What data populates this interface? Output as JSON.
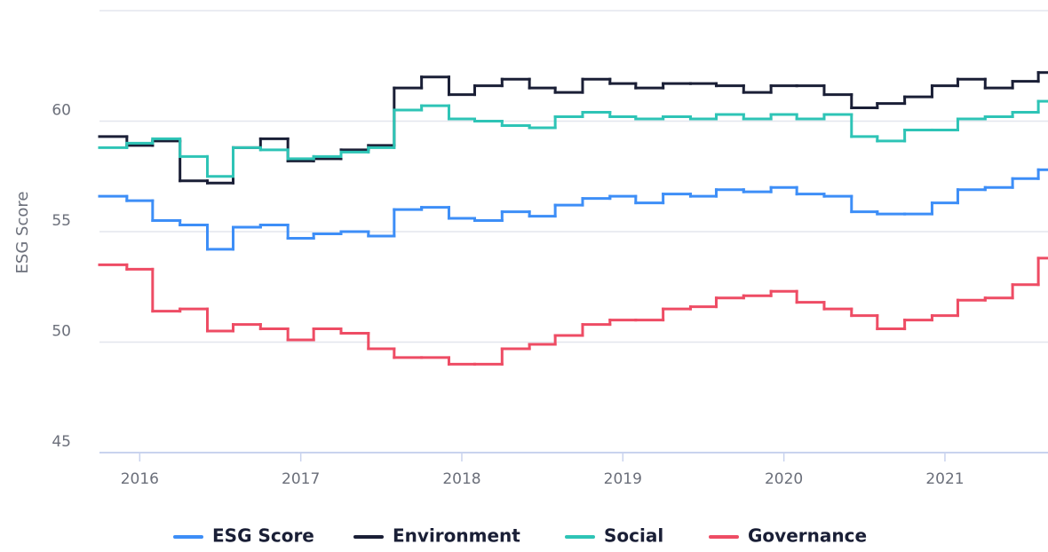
{
  "chart_data": {
    "type": "line",
    "step": "post",
    "y_label": "ESG Score",
    "x": [
      2015.75,
      2015.92,
      2016.08,
      2016.25,
      2016.42,
      2016.58,
      2016.75,
      2016.92,
      2017.08,
      2017.25,
      2017.42,
      2017.58,
      2017.75,
      2017.92,
      2018.08,
      2018.25,
      2018.42,
      2018.58,
      2018.75,
      2018.92,
      2019.08,
      2019.25,
      2019.42,
      2019.58,
      2019.75,
      2019.92,
      2020.08,
      2020.25,
      2020.42,
      2020.58,
      2020.75,
      2020.92,
      2021.08,
      2021.25,
      2021.42,
      2021.58
    ],
    "series": [
      {
        "name": "ESG Score",
        "color": "#3d8ef7",
        "values": [
          56.6,
          56.4,
          55.5,
          55.3,
          54.2,
          55.2,
          55.3,
          54.7,
          54.9,
          55.0,
          54.8,
          56.0,
          56.1,
          55.6,
          55.5,
          55.9,
          55.7,
          56.2,
          56.5,
          56.6,
          56.3,
          56.7,
          56.6,
          56.9,
          56.8,
          57.0,
          56.7,
          56.6,
          55.9,
          55.8,
          55.8,
          56.3,
          56.9,
          57.0,
          57.4,
          57.8
        ]
      },
      {
        "name": "Environment",
        "color": "#1a1f36",
        "values": [
          59.3,
          58.9,
          59.1,
          57.3,
          57.2,
          58.8,
          59.2,
          58.2,
          58.3,
          58.7,
          58.9,
          61.5,
          62.0,
          61.2,
          61.6,
          61.9,
          61.5,
          61.3,
          61.9,
          61.7,
          61.5,
          61.7,
          61.7,
          61.6,
          61.3,
          61.6,
          61.6,
          61.2,
          60.6,
          60.8,
          61.1,
          61.6,
          61.9,
          61.5,
          61.8,
          62.2
        ]
      },
      {
        "name": "Social",
        "color": "#2ec4b6",
        "values": [
          58.8,
          59.0,
          59.2,
          58.4,
          57.5,
          58.8,
          58.7,
          58.3,
          58.4,
          58.6,
          58.8,
          60.5,
          60.7,
          60.1,
          60.0,
          59.8,
          59.7,
          60.2,
          60.4,
          60.2,
          60.1,
          60.2,
          60.1,
          60.3,
          60.1,
          60.3,
          60.1,
          60.3,
          59.3,
          59.1,
          59.6,
          59.6,
          60.1,
          60.2,
          60.4,
          60.9
        ]
      },
      {
        "name": "Governance",
        "color": "#ee4c64",
        "values": [
          53.5,
          53.3,
          51.4,
          51.5,
          50.5,
          50.8,
          50.6,
          50.1,
          50.6,
          50.4,
          49.7,
          49.3,
          49.3,
          49.0,
          49.0,
          49.7,
          49.9,
          50.3,
          50.8,
          51.0,
          51.0,
          51.5,
          51.6,
          52.0,
          52.1,
          52.3,
          51.8,
          51.5,
          51.2,
          50.6,
          51.0,
          51.2,
          51.9,
          52.0,
          52.6,
          53.8
        ]
      }
    ],
    "xlim": [
      2015.75,
      2021.64
    ],
    "xticks": [
      2016,
      2017,
      2018,
      2019,
      2020,
      2021
    ],
    "ylim": [
      45,
      65
    ],
    "yticks": [
      45,
      50,
      55,
      60
    ],
    "grid": true,
    "legend": "bottom"
  }
}
